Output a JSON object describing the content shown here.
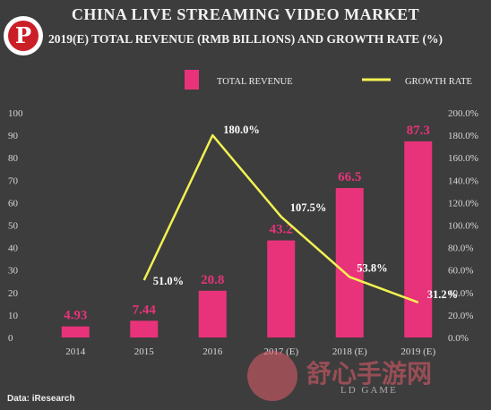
{
  "header": {
    "title": "CHINA LIVE STREAMING VIDEO MARKET",
    "subtitle": "2019(E) TOTAL REVENUE (RMB BILLIONS) AND GROWTH RATE (%)"
  },
  "logo": {
    "pinterest_glyph": "P"
  },
  "legend": {
    "bar_label": "TOTAL REVENUE",
    "line_label": "GROWTH RATE"
  },
  "footer": {
    "source": "Data: iResearch"
  },
  "watermark": {
    "text": "舒心手游网",
    "sub": "LD GAME"
  },
  "colors": {
    "background": "#3d3d3d",
    "bar": "#e8337a",
    "line": "#f2f251",
    "text": "#d8d8d8"
  },
  "chart_data": {
    "type": "bar",
    "categories": [
      "2014",
      "2015",
      "2016",
      "2017 (E)",
      "2018 (E)",
      "2019 (E)"
    ],
    "series": [
      {
        "name": "TOTAL REVENUE",
        "type": "bar",
        "axis": "left",
        "values": [
          4.93,
          7.44,
          20.8,
          43.2,
          66.5,
          87.3
        ],
        "labels": [
          "4.93",
          "7.44",
          "20.8",
          "43.2",
          "66.5",
          "87.3"
        ]
      },
      {
        "name": "GROWTH RATE",
        "type": "line",
        "axis": "right",
        "values": [
          null,
          51.0,
          180.0,
          107.5,
          53.8,
          31.2
        ],
        "labels": [
          "",
          "51.0%",
          "180.0%",
          "107.5%",
          "53.8%",
          "31.2%"
        ]
      }
    ],
    "ylim": [
      0,
      100
    ],
    "y_ticks": [
      "0",
      "10",
      "20",
      "30",
      "40",
      "50",
      "60",
      "70",
      "80",
      "90",
      "100"
    ],
    "y2lim": [
      0,
      200
    ],
    "y2_ticks": [
      "0.0%",
      "20.0%",
      "40.0%",
      "60.0%",
      "80.0%",
      "100.0%",
      "120.0%",
      "140.0%",
      "160.0%",
      "180.0%",
      "200.0%"
    ],
    "grid": false,
    "legend_position": "top-right"
  }
}
